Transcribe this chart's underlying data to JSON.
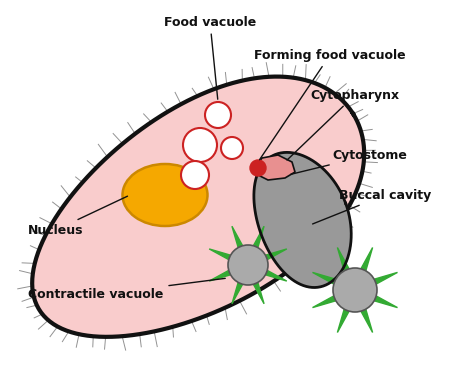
{
  "body_color": "#f9cccc",
  "body_outline": "#111111",
  "nucleus_color": "#f5a800",
  "nucleus_outline": "#cc8800",
  "food_vacuole_color": "#ffffff",
  "food_vacuole_outline": "#cc2222",
  "buccal_cavity_color": "#999999",
  "buccal_cavity_outline": "#111111",
  "cytopharynx_color": "#e89090",
  "cytostome_color": "#cc2222",
  "contractile_vacuole_color": "#aaaaaa",
  "contractile_vacuole_outline": "#555555",
  "contractile_vacuole_green": "#33aa33",
  "cilia_color": "#777777",
  "background_color": "#ffffff",
  "label_food_vacuole": "Food vacuole",
  "label_forming_food_vacuole": "Forming food vacuole",
  "label_cytopharynx": "Cytopharynx",
  "label_cytostome": "Cytostome",
  "label_buccal_cavity": "Buccal cavity",
  "label_nucleus": "Nucleus",
  "label_contractile_vacuole": "Contractile vacuole",
  "label_fontsize": 9,
  "label_fontweight": "bold"
}
